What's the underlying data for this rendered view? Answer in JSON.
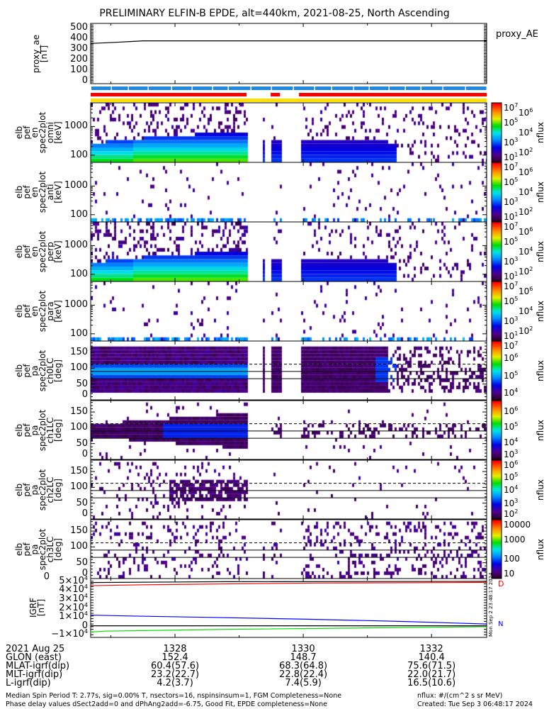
{
  "title": "PRELIMINARY ELFIN-B EPDE, alt=440km, 2021-08-25, North Ascending",
  "chart_data": {
    "type": "heatmap",
    "xlim_minutes": [
      1326.685,
      1332.86
    ],
    "data_intervals": [
      [
        1326.685,
        1329.116
      ],
      [
        1329.337,
        1329.37
      ],
      [
        1329.492,
        1329.636
      ],
      [
        1329.768,
        1329.8
      ],
      [
        1329.934,
        1332.86
      ]
    ],
    "proxy_ae": {
      "type": "line",
      "ylabel": [
        "proxy_ae",
        "[nT]"
      ],
      "legend": "proxy_AE",
      "yticks": [
        "500",
        "400",
        "300",
        "200",
        "100",
        "0"
      ],
      "ylim": [
        -30,
        540
      ],
      "x": [
        1326.685,
        1326.9,
        1327.1,
        1327.3,
        1327.5,
        1332.86
      ],
      "y": [
        350,
        356,
        362,
        368,
        375,
        375
      ]
    },
    "status_bars": {
      "blue": "#1e88e5",
      "red": "#ff0000",
      "yellow": "#ffe000"
    },
    "spec_panels": [
      {
        "label": [
          "elb",
          "pef",
          "en",
          "spec2plot",
          "omni",
          "[keV]"
        ],
        "yticks": [
          "1000",
          "100"
        ],
        "ylim_keV": [
          56,
          6700
        ],
        "cbar": [
          "10",
          "7",
          "10",
          "6",
          "10",
          "5",
          "10",
          "4",
          "10",
          "3",
          "10",
          "2",
          "10",
          "1"
        ],
        "cbar_label": "nflux",
        "cbar_range_log": [
          1,
          7
        ]
      },
      {
        "label": [
          "elb",
          "pef",
          "en",
          "spec2plot",
          "anti",
          "[keV]"
        ],
        "yticks": [
          "1000",
          "100"
        ],
        "ylim_keV": [
          56,
          6700
        ],
        "cbar": [
          "10",
          "7",
          "10",
          "6",
          "10",
          "5",
          "10",
          "4",
          "10",
          "3",
          "10",
          "2",
          "10",
          "1"
        ],
        "cbar_label": "nflux",
        "cbar_range_log": [
          1,
          7
        ]
      },
      {
        "label": [
          "elb",
          "pef",
          "en",
          "spec2plot",
          "perp",
          "[keV]"
        ],
        "yticks": [
          "1000",
          "100"
        ],
        "ylim_keV": [
          56,
          6700
        ],
        "cbar": [
          "10",
          "7",
          "10",
          "6",
          "10",
          "5",
          "10",
          "4",
          "10",
          "3",
          "10",
          "2",
          "10",
          "1"
        ],
        "cbar_label": "nflux",
        "cbar_range_log": [
          1,
          7
        ]
      },
      {
        "label": [
          "elb",
          "pef",
          "en",
          "spec2plot",
          "para",
          "[keV]"
        ],
        "yticks": [
          "1000",
          "100"
        ],
        "ylim_keV": [
          56,
          6700
        ],
        "cbar": [
          "10",
          "7",
          "10",
          "6",
          "10",
          "5",
          "10",
          "4",
          "10",
          "3",
          "10",
          "2",
          "10",
          "1"
        ],
        "cbar_label": "nflux",
        "cbar_range_log": [
          1,
          7
        ]
      }
    ],
    "pa_panels": [
      {
        "label": [
          "elb",
          "pef",
          "pa",
          "spec2plot",
          "ch0LC",
          "[deg]"
        ],
        "yticks": [
          "150",
          "100",
          "50",
          "0"
        ],
        "ylim_deg": [
          0,
          186
        ],
        "cbar": [
          [
            "10",
            "7"
          ],
          [
            "10",
            "6"
          ],
          [
            "10",
            "5"
          ],
          [
            "10",
            "4"
          ]
        ],
        "cbar_label": "nflux",
        "cbar_range_log": [
          3.6,
          7
        ]
      },
      {
        "label": [
          "elb",
          "pef",
          "pa",
          "spec2plot",
          "ch1LC",
          "[deg]"
        ],
        "yticks": [
          "150",
          "100",
          "50",
          "0"
        ],
        "ylim_deg": [
          0,
          186
        ],
        "cbar": [
          [
            "10",
            "6"
          ],
          [
            "10",
            "5"
          ],
          [
            "10",
            "4"
          ],
          [
            "10",
            "3"
          ]
        ],
        "cbar_label": "nflux",
        "cbar_range_log": [
          2.9,
          6.7
        ]
      },
      {
        "label": [
          "elb",
          "pef",
          "pa",
          "spec2plot",
          "ch2LC",
          "[deg]"
        ],
        "yticks": [
          "150",
          "100",
          "50",
          "0"
        ],
        "ylim_deg": [
          0,
          186
        ],
        "cbar": [
          [
            "10",
            "6"
          ],
          [
            "10",
            "5"
          ],
          [
            "10",
            "4"
          ],
          [
            "10",
            "3"
          ],
          [
            "10",
            "2"
          ]
        ],
        "cbar_label": "nflux",
        "cbar_range_log": [
          1.8,
          6.3
        ]
      },
      {
        "label": [
          "elb",
          "pef",
          "pa",
          "spec2plot",
          "ch3LC",
          "[deg]"
        ],
        "yticks": [
          "150",
          "100",
          "50",
          "0"
        ],
        "ylim_deg": [
          0,
          186
        ],
        "cbar": [
          [
            "10000",
            ""
          ],
          [
            "1000",
            ""
          ],
          [
            "100",
            ""
          ],
          [
            "10",
            ""
          ]
        ],
        "cbar_label": "nflux",
        "cbar_range_log": [
          1,
          4
        ]
      }
    ],
    "igrf": {
      "type": "line",
      "ylabel": [
        "IGRF",
        "[nT]"
      ],
      "yticks": [
        [
          "0",
          ""
        ],
        [
          "5×10",
          "4"
        ],
        [
          "4×10",
          "4"
        ],
        [
          "3×10",
          "4"
        ],
        [
          "2×10",
          "4"
        ],
        [
          "1×10",
          "4"
        ],
        [
          "0",
          ""
        ],
        [
          "−1×10",
          "4"
        ]
      ],
      "ylim": [
        -13000,
        53000
      ],
      "legend_letters": [
        "D",
        "N"
      ],
      "series": [
        {
          "name": "total",
          "color": "#000000",
          "x": [
            1326.685,
            1328.8,
            1332.86
          ],
          "y": [
            48500,
            49500,
            49800
          ]
        },
        {
          "name": "red",
          "color": "#ff0000",
          "x": [
            1326.685,
            1327.5,
            1328.8,
            1330.2,
            1332.86
          ],
          "y": [
            45000,
            46000,
            47000,
            48000,
            48600
          ]
        },
        {
          "name": "blue",
          "color": "#0000ff",
          "x": [
            1326.685,
            1327.3,
            1328.5,
            1330,
            1331.5,
            1332.86
          ],
          "y": [
            12000,
            11000,
            9500,
            7500,
            5000,
            2000
          ]
        },
        {
          "name": "green",
          "color": "#00dd00",
          "x": [
            1326.685,
            1326.9,
            1328.8,
            1332.86
          ],
          "y": [
            -7000,
            -6000,
            -4000,
            -1000
          ]
        },
        {
          "name": "zero",
          "color": "#000000",
          "x": [
            1326.685,
            1332.86
          ],
          "y": [
            0,
            0
          ]
        }
      ],
      "side_text": "Mon Sep  2 23:48:17 2024"
    },
    "xaxis": {
      "row_labels": [
        "2021 Aug 25",
        "GLON (east)",
        "MLAT-igrf(dip)",
        "MLT-igrf(dip)",
        "L-igrf(dip)"
      ],
      "ticks": [
        {
          "minute": 1328,
          "values": [
            "1328",
            "152.4",
            "60.4(57.6)",
            "23.2(22.7)",
            "4.2(3.7)"
          ]
        },
        {
          "minute": 1330,
          "values": [
            "1330",
            "148.7",
            "68.3(64.8)",
            "22.8(22.4)",
            "7.4(5.9)"
          ]
        },
        {
          "minute": 1332,
          "values": [
            "1332",
            "140.4",
            "75.6(71.5)",
            "22.0(21.7)",
            "16.5(10.6)"
          ]
        }
      ]
    }
  },
  "footer": {
    "line1": "Median Spin Period T: 2.77s, sig=0.00% T, nsectors=16, nspinsinsum=1, FGM Completeness=None",
    "line2": "Phase delay values dSect2add=0 and dPhAng2add=-6.75, Good Fit, EPDE completeness=None",
    "units": "nflux: #/(cm^2 s sr MeV)",
    "created": "Created: Tue Sep  3 06:48:17 2024"
  }
}
